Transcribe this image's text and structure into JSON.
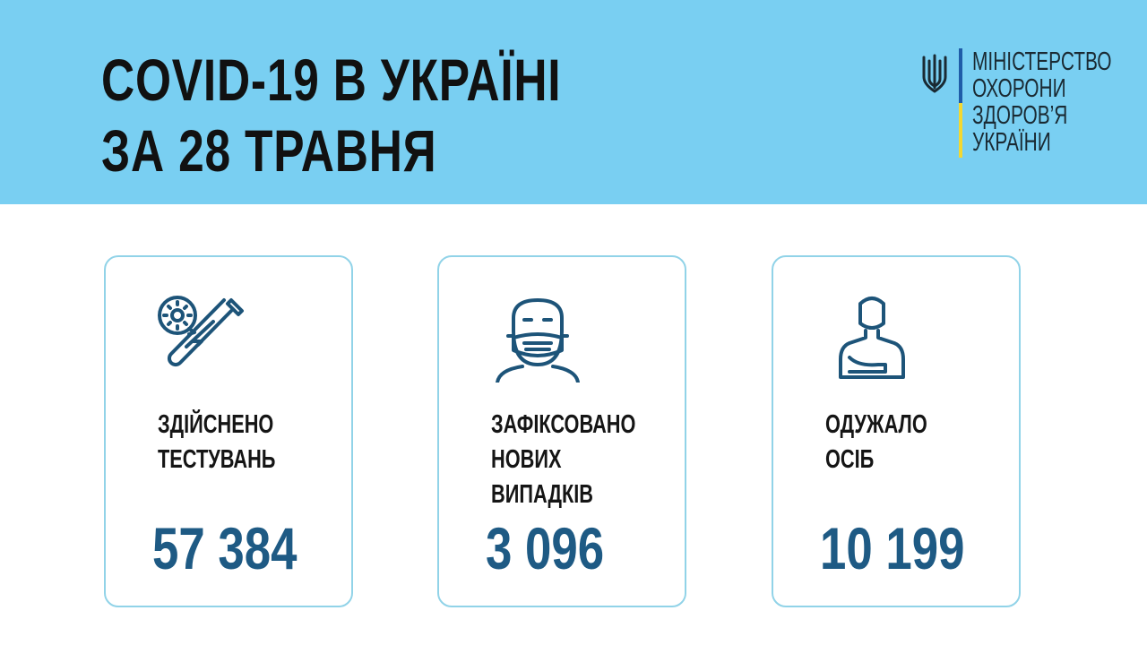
{
  "header": {
    "title_line1": "COVID-19 В УКРАЇНІ",
    "title_line2": "ЗА 28 ТРАВНЯ",
    "background": "#79cff2"
  },
  "ministry": {
    "lines": [
      "МІНІСТЕРСТВО",
      "ОХОРОНИ",
      "ЗДОРОВ’Я",
      "УКРАЇНИ"
    ],
    "emblem": "trident-icon"
  },
  "cards": [
    {
      "icon": "test-tube-virus-icon",
      "label": [
        "ЗДІЙСНЕНО",
        "ТЕСТУВАНЬ"
      ],
      "value": "57 384"
    },
    {
      "icon": "masked-person-icon",
      "label": [
        "ЗАФІКСОВАНО",
        "НОВИХ",
        "ВИПАДКІВ"
      ],
      "value": "3 096"
    },
    {
      "icon": "recovered-person-icon",
      "label": [
        "ОДУЖАЛО",
        "ОСІБ"
      ],
      "value": "10 199"
    }
  ],
  "colors": {
    "value": "#1e5a84",
    "card_border": "#91d3e8"
  }
}
